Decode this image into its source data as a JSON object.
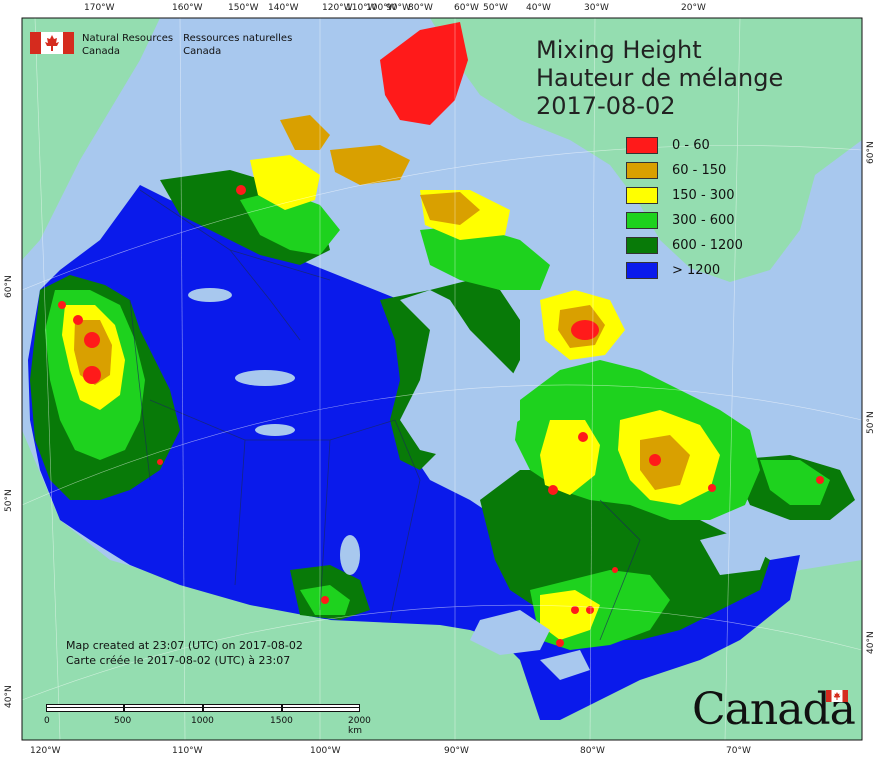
{
  "map": {
    "title_en": "Mixing Height",
    "title_fr": "Hauteur de mélange",
    "date": "2017-08-02",
    "legend": [
      {
        "label": "0 - 60",
        "color": "#ff1a1a"
      },
      {
        "label": "60 - 150",
        "color": "#d9a000"
      },
      {
        "label": "150 - 300",
        "color": "#ffff00"
      },
      {
        "label": "300 - 600",
        "color": "#1ed21e"
      },
      {
        "label": "600 - 1200",
        "color": "#087a08"
      },
      {
        "label": "> 1200",
        "color": "#0a1aeb"
      }
    ],
    "created_en": "Map created at 23:07 (UTC) on 2017-08-02",
    "created_fr": "Carte créée le 2017-08-02 (UTC) à 23:07",
    "scale_labels": [
      "0",
      "500",
      "1000",
      "1500",
      "2000  km"
    ],
    "top_ticks": [
      "170°W",
      "160°W",
      "150°W",
      "140°W",
      "120°W",
      "110°W",
      "100°W",
      "90°W",
      "80°W",
      "60°W",
      "50°W",
      "40°W",
      "30°W",
      "20°W"
    ],
    "bottom_ticks": [
      "120°W",
      "110°W",
      "100°W",
      "90°W",
      "80°W",
      "70°W"
    ],
    "left_ticks": [
      "60°N",
      "50°N",
      "40°N"
    ],
    "right_ticks": [
      "60°N",
      "50°N",
      "40°N"
    ]
  },
  "agency": {
    "en_line1": "Natural Resources",
    "en_line2": "Canada",
    "fr_line1": "Ressources naturelles",
    "fr_line2": "Canada"
  },
  "wordmark": "Canada",
  "colors": {
    "ocean": "#a8c8ee",
    "foreign_land": "#94ddb0"
  }
}
